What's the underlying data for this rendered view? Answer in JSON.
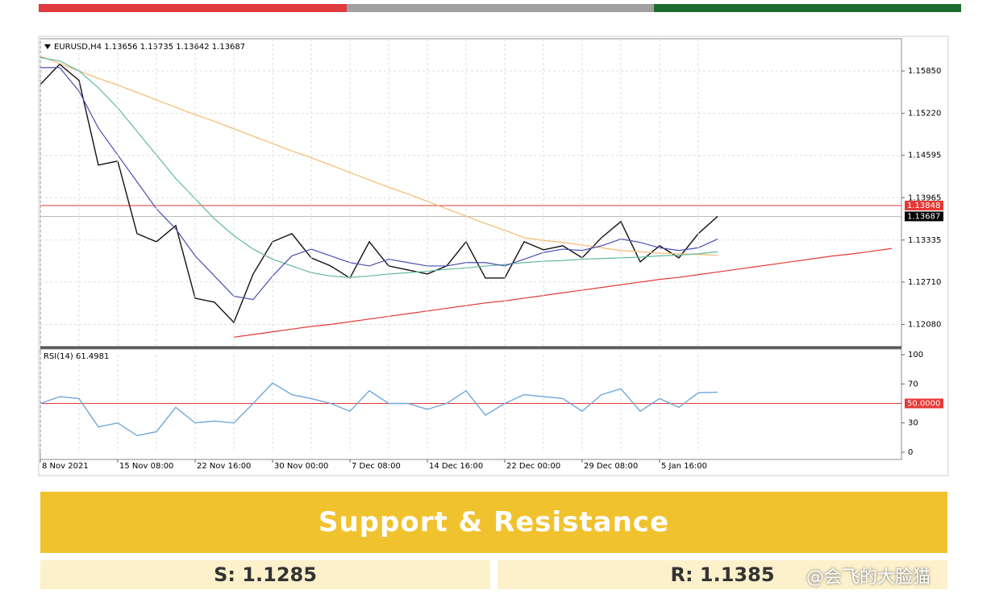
{
  "chart_data": [
    {
      "type": "line",
      "title": "EURUSD,H4 1.13656 1.13735 1.13642 1.13687",
      "ylim": [
        1.1175,
        1.1633
      ],
      "yticks": [
        {
          "value": 1.1208,
          "label": "1.12080"
        },
        {
          "value": 1.1271,
          "label": "1.12710"
        },
        {
          "value": 1.13335,
          "label": "1.13335"
        },
        {
          "value": 1.13965,
          "label": "1.13965"
        },
        {
          "value": 1.14595,
          "label": "1.14595"
        },
        {
          "value": 1.1522,
          "label": "1.15220"
        },
        {
          "value": 1.1585,
          "label": "1.15850"
        }
      ],
      "grid": true,
      "hlines": [
        {
          "value": 1.13848,
          "color": "#e53935"
        },
        {
          "value": 1.13687,
          "color": "#000000"
        }
      ],
      "series": [
        {
          "color": "#111111",
          "values": [
            1.1565,
            1.1595,
            1.1571,
            1.1445,
            1.1451,
            1.1343,
            1.1331,
            1.1355,
            1.1247,
            1.1241,
            1.1211,
            1.1283,
            1.1331,
            1.1343,
            1.1307,
            1.1295,
            1.1277,
            1.1331,
            1.1295,
            1.1289,
            1.1283,
            1.1295,
            1.1331,
            1.1277,
            1.1277,
            1.1331,
            1.1319,
            1.1325,
            1.1307,
            1.1337,
            1.1361,
            1.1301,
            1.1325,
            1.1307,
            1.1343,
            1.13687,
            null,
            null,
            null,
            null,
            null,
            null,
            null,
            null,
            null
          ]
        },
        {
          "color": "#f5b971",
          "values": [
            1.1607,
            1.1596,
            1.1585,
            1.1574,
            1.1564,
            1.1553,
            1.1542,
            1.1531,
            1.152,
            1.151,
            1.1499,
            1.1488,
            1.1477,
            1.1466,
            1.1456,
            1.1445,
            1.1434,
            1.1423,
            1.1412,
            1.1402,
            1.1391,
            1.138,
            1.1369,
            1.1358,
            1.1348,
            1.1337,
            1.1333,
            1.133,
            1.1326,
            1.1322,
            1.1318,
            1.1316,
            1.1314,
            1.1313,
            1.1312,
            1.1311,
            null,
            null,
            null,
            null,
            null,
            null,
            null,
            null,
            null
          ]
        },
        {
          "color": "#5fb9a0",
          "values": [
            1.1605,
            1.16,
            1.1585,
            1.156,
            1.153,
            1.1495,
            1.146,
            1.1425,
            1.1395,
            1.1365,
            1.134,
            1.132,
            1.1305,
            1.1295,
            1.1285,
            1.128,
            1.1278,
            1.128,
            1.1283,
            1.1285,
            1.1287,
            1.129,
            1.1292,
            1.1295,
            1.1297,
            1.13,
            1.1302,
            1.1303,
            1.1305,
            1.1306,
            1.1307,
            1.1308,
            1.131,
            1.1311,
            1.1313,
            1.1316,
            null,
            null,
            null,
            null,
            null,
            null,
            null,
            null,
            null
          ]
        },
        {
          "color": "#4a4fb0",
          "values": [
            1.159,
            1.159,
            1.1555,
            1.15,
            1.146,
            1.142,
            1.138,
            1.135,
            1.131,
            1.128,
            1.125,
            1.1245,
            1.128,
            1.131,
            1.132,
            1.131,
            1.13,
            1.1295,
            1.1305,
            1.13,
            1.1295,
            1.1295,
            1.13,
            1.13,
            1.1295,
            1.1305,
            1.1315,
            1.132,
            1.1318,
            1.1325,
            1.1335,
            1.133,
            1.1322,
            1.1318,
            1.1322,
            1.1335,
            null,
            null,
            null,
            null,
            null,
            null,
            null,
            null,
            null
          ]
        },
        {
          "color": "#e53935",
          "values": [
            null,
            null,
            null,
            null,
            null,
            null,
            null,
            null,
            null,
            null,
            1.1189,
            1.1193,
            1.1197,
            1.1201,
            1.1205,
            1.1208,
            1.1212,
            1.1216,
            1.122,
            1.1224,
            1.1228,
            1.1232,
            1.1236,
            1.124,
            1.1243,
            1.1247,
            1.1251,
            1.1255,
            1.1259,
            1.1263,
            1.1267,
            1.1271,
            1.1275,
            1.1278,
            1.1282,
            1.1286,
            1.129,
            1.1294,
            1.1298,
            1.1302,
            1.1306,
            1.131,
            1.1313,
            1.1317,
            1.1321
          ]
        }
      ]
    },
    {
      "type": "line",
      "title": "RSI(14) 61.4981",
      "categories": [
        "8 Nov 2021",
        null,
        null,
        null,
        "15 Nov 08:00",
        null,
        null,
        null,
        "22 Nov 16:00",
        null,
        null,
        null,
        "30 Nov 00:00",
        null,
        null,
        null,
        "7 Dec 08:00",
        null,
        null,
        null,
        "14 Dec 16:00",
        null,
        null,
        null,
        "22 Dec 00:00",
        null,
        null,
        null,
        "29 Dec 08:00",
        null,
        null,
        null,
        "5 Jan 16:00",
        null,
        null,
        null,
        null,
        null,
        null,
        null,
        null,
        null,
        null,
        null,
        null
      ],
      "ylim": [
        0,
        100
      ],
      "yticks": [
        0,
        30,
        70,
        100
      ],
      "grid": false,
      "hlines": [
        {
          "value": 50,
          "label": "50.0000",
          "color": "#e53935"
        }
      ],
      "series": [
        {
          "color": "#6fa8dc",
          "values": [
            50,
            57,
            55,
            26,
            30,
            17,
            21,
            46,
            30,
            32,
            30,
            50,
            71,
            59,
            55,
            50,
            42,
            63,
            50,
            50,
            44,
            50,
            63,
            38,
            50,
            59,
            57,
            55,
            42,
            59,
            65,
            42,
            55,
            46,
            61,
            61.5,
            null,
            null,
            null,
            null,
            null,
            null,
            null,
            null,
            null
          ]
        }
      ]
    }
  ],
  "panel": {
    "title": "Support & Resistance",
    "support": "S: 1.1285",
    "resistance": "R: 1.1385"
  },
  "watermark": "@会飞的大脸猫"
}
